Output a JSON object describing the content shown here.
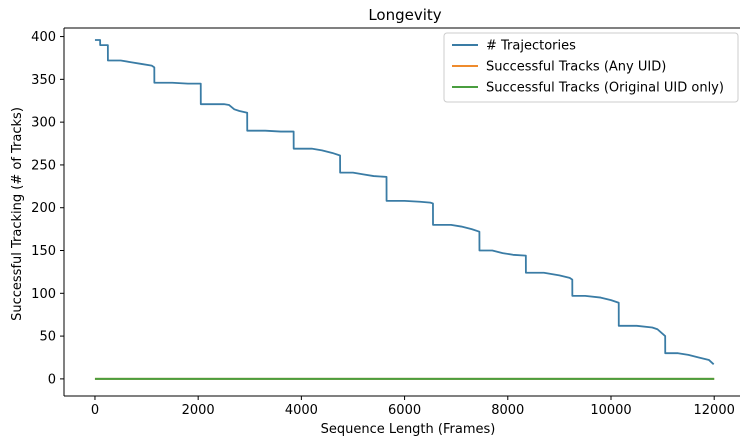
{
  "chart_data": {
    "type": "line",
    "title": "Longevity",
    "xlabel": "Sequence Length (Frames)",
    "ylabel": "Successful Tracking (# of Tracks)",
    "xlim": [
      -600,
      12500
    ],
    "ylim": [
      -20,
      410
    ],
    "xticks": [
      0,
      2000,
      4000,
      6000,
      8000,
      10000,
      12000
    ],
    "yticks": [
      0,
      50,
      100,
      150,
      200,
      250,
      300,
      350,
      400
    ],
    "grid": false,
    "legend_position": "top-right",
    "series": [
      {
        "name": "# Trajectories",
        "color": "#3a7ca5",
        "x": [
          0,
          100,
          101,
          250,
          251,
          500,
          700,
          900,
          1100,
          1150,
          1151,
          1500,
          1800,
          2050,
          2051,
          2500,
          2600,
          2700,
          2800,
          2950,
          2951,
          3300,
          3600,
          3850,
          3851,
          4200,
          4400,
          4600,
          4750,
          4751,
          5000,
          5200,
          5400,
          5650,
          5651,
          6000,
          6300,
          6500,
          6550,
          6551,
          6900,
          7100,
          7300,
          7450,
          7451,
          7700,
          7900,
          8100,
          8350,
          8351,
          8700,
          9000,
          9200,
          9250,
          9251,
          9500,
          9800,
          10000,
          10150,
          10151,
          10500,
          10800,
          10900,
          11050,
          11051,
          11300,
          11500,
          11700,
          11900,
          11990
        ],
        "y": [
          396,
          396,
          390,
          390,
          372,
          372,
          370,
          368,
          366,
          364,
          346,
          346,
          345,
          345,
          321,
          321,
          320,
          315,
          313,
          311,
          290,
          290,
          289,
          289,
          269,
          269,
          267,
          264,
          261,
          241,
          241,
          239,
          237,
          236,
          208,
          208,
          207,
          206,
          205,
          180,
          180,
          178,
          175,
          172,
          150,
          150,
          147,
          145,
          144,
          124,
          124,
          121,
          118,
          116,
          97,
          97,
          95,
          92,
          89,
          62,
          62,
          60,
          58,
          50,
          30,
          30,
          28,
          25,
          22,
          17
        ]
      },
      {
        "name": "Successful Tracks (Any UID)",
        "color": "#ef8b2c",
        "x": [
          0,
          12000
        ],
        "y": [
          0,
          0
        ]
      },
      {
        "name": "Successful Tracks (Original UID only)",
        "color": "#4a9e3f",
        "x": [
          0,
          12000
        ],
        "y": [
          0,
          0
        ]
      }
    ]
  }
}
